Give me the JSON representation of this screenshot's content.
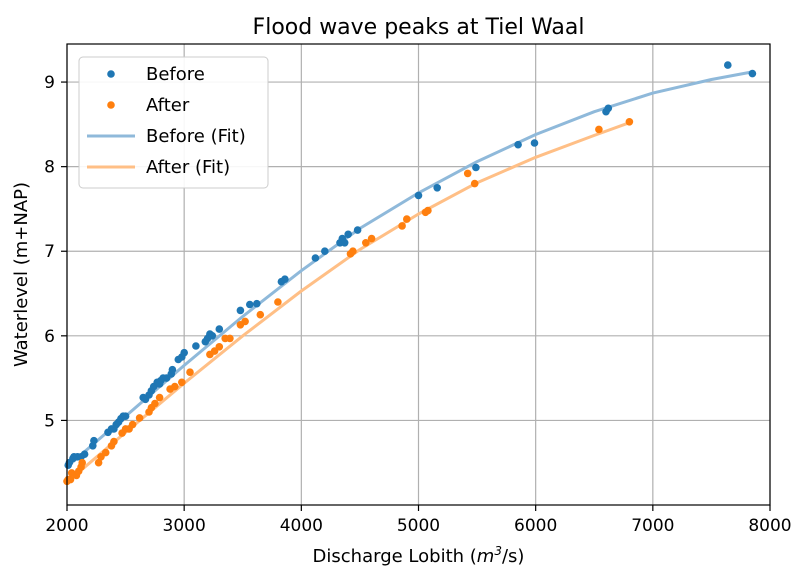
{
  "chart_data": {
    "type": "scatter",
    "title": "Flood wave peaks at Tiel Waal",
    "xlabel_prefix": "Discharge Lobith (",
    "xlabel_unit_base": "m",
    "xlabel_unit_exp": "3",
    "xlabel_suffix": "/s)",
    "ylabel": "Waterlevel (m+NAP)",
    "xlim": [
      2000,
      8000
    ],
    "ylim": [
      4.0,
      9.45
    ],
    "xticks": [
      2000,
      3000,
      4000,
      5000,
      6000,
      7000,
      8000
    ],
    "yticks": [
      5,
      6,
      7,
      8,
      9
    ],
    "grid": true,
    "legend_position": "top-left",
    "colors": {
      "before": "#1f77b4",
      "after": "#ff7f0e",
      "before_fit": "#8fb9da",
      "after_fit": "#ffbf86"
    },
    "series": [
      {
        "name": "Before",
        "kind": "points",
        "color": "#1f77b4",
        "x": [
          2010,
          2020,
          2050,
          2060,
          2090,
          2120,
          2150,
          2220,
          2230,
          2350,
          2380,
          2400,
          2420,
          2440,
          2460,
          2480,
          2500,
          2650,
          2670,
          2700,
          2720,
          2740,
          2770,
          2790,
          2800,
          2820,
          2850,
          2890,
          2900,
          2950,
          2980,
          3000,
          3100,
          3180,
          3200,
          3220,
          3240,
          3300,
          3480,
          3560,
          3620,
          3830,
          3860,
          4120,
          4200,
          4330,
          4350,
          4370,
          4400,
          4480,
          5000,
          5160,
          5490,
          5850,
          5990,
          6600,
          6620,
          7640,
          7850
        ],
        "y": [
          4.47,
          4.5,
          4.55,
          4.57,
          4.57,
          4.57,
          4.6,
          4.7,
          4.76,
          4.86,
          4.9,
          4.9,
          4.95,
          4.98,
          5.02,
          5.05,
          5.05,
          5.27,
          5.25,
          5.3,
          5.35,
          5.4,
          5.45,
          5.43,
          5.47,
          5.5,
          5.5,
          5.55,
          5.6,
          5.72,
          5.75,
          5.8,
          5.88,
          5.93,
          5.97,
          6.02,
          6.0,
          6.08,
          6.3,
          6.37,
          6.38,
          6.64,
          6.67,
          6.92,
          7.0,
          7.1,
          7.15,
          7.1,
          7.2,
          7.25,
          7.66,
          7.75,
          7.99,
          8.26,
          8.28,
          8.65,
          8.69,
          9.2,
          9.1
        ]
      },
      {
        "name": "After",
        "kind": "points",
        "color": "#ff7f0e",
        "x": [
          2000,
          2010,
          2030,
          2040,
          2080,
          2100,
          2120,
          2130,
          2270,
          2290,
          2330,
          2380,
          2400,
          2470,
          2500,
          2530,
          2560,
          2620,
          2700,
          2720,
          2750,
          2790,
          2880,
          2920,
          2980,
          3050,
          3220,
          3260,
          3300,
          3350,
          3390,
          3480,
          3520,
          3650,
          3800,
          4420,
          4440,
          4550,
          4600,
          4860,
          4900,
          5060,
          5080,
          5420,
          5480,
          6540,
          6800
        ],
        "y": [
          4.28,
          4.3,
          4.3,
          4.38,
          4.35,
          4.4,
          4.45,
          4.5,
          4.5,
          4.57,
          4.62,
          4.7,
          4.75,
          4.85,
          4.9,
          4.9,
          4.95,
          5.03,
          5.1,
          5.15,
          5.2,
          5.27,
          5.37,
          5.4,
          5.45,
          5.57,
          5.78,
          5.82,
          5.87,
          5.97,
          5.97,
          6.13,
          6.17,
          6.25,
          6.4,
          6.97,
          7.0,
          7.1,
          7.15,
          7.3,
          7.38,
          7.46,
          7.48,
          7.92,
          7.8,
          8.44,
          8.53
        ]
      },
      {
        "name": "Before (Fit)",
        "kind": "line",
        "color": "#8fb9da",
        "x": [
          2000,
          2500,
          3000,
          3500,
          4000,
          4500,
          5000,
          5500,
          6000,
          6500,
          7000,
          7500,
          7850
        ],
        "y": [
          4.45,
          5.05,
          5.65,
          6.23,
          6.77,
          7.27,
          7.69,
          8.06,
          8.38,
          8.65,
          8.87,
          9.03,
          9.12
        ]
      },
      {
        "name": "After (Fit)",
        "kind": "line",
        "color": "#ffbf86",
        "x": [
          2000,
          2500,
          3000,
          3500,
          4000,
          4500,
          5000,
          5500,
          6000,
          6500,
          6800
        ],
        "y": [
          4.27,
          4.86,
          5.44,
          6.0,
          6.53,
          7.02,
          7.44,
          7.81,
          8.11,
          8.37,
          8.52
        ]
      }
    ]
  }
}
